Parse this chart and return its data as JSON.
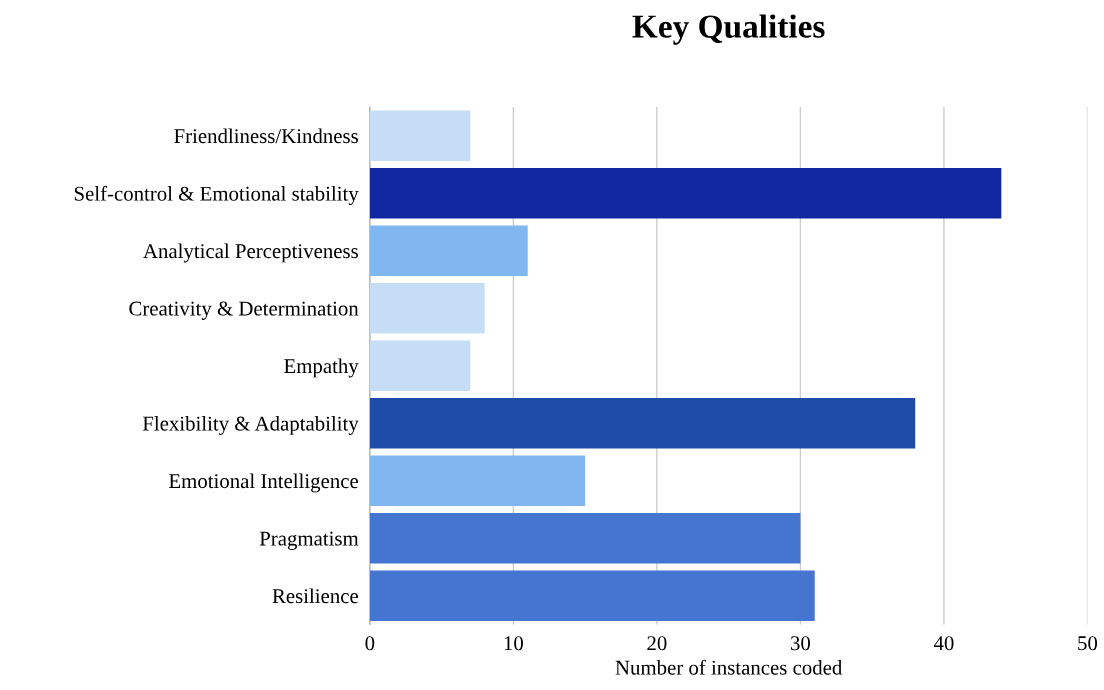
{
  "chart_data": {
    "type": "bar",
    "orientation": "horizontal",
    "title": "Key Qualities",
    "xlabel": "Number of instances coded",
    "categories": [
      "Friendliness/Kindness",
      "Self-control & Emotional stability",
      "Analytical Perceptiveness",
      "Creativity & Determination",
      "Empathy",
      "Flexibility & Adaptability",
      "Emotional Intelligence",
      "Pragmatism",
      "Resilience"
    ],
    "values": [
      7,
      44,
      11,
      8,
      7,
      38,
      15,
      30,
      31
    ],
    "colors": [
      "#c5ddf5",
      "#1228a0",
      "#80b7f1",
      "#c5ddf5",
      "#c5ddf5",
      "#1e4aa8",
      "#80b7f1",
      "#4475d1",
      "#4475d1"
    ],
    "xlim": [
      0,
      50
    ],
    "xticks": [
      0,
      10,
      20,
      30,
      40,
      50
    ],
    "grid": "x",
    "legend": false
  }
}
